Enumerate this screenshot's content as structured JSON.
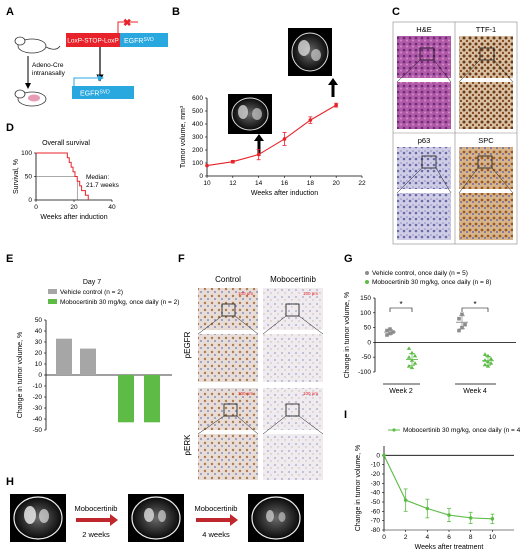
{
  "panels": {
    "A": {
      "letter": "A",
      "gene_box": "LoxP-STOP-LoxP",
      "egfr_label": "EGFR",
      "egfr_sup": "SVD",
      "cre_label_1": "Adeno-Cre",
      "cre_label_2": "intranasally",
      "egfr2_label": "EGFR",
      "egfr2_sup": "SVD",
      "colors": {
        "lsl": "#e8222a",
        "egfr": "#29a8e0"
      }
    },
    "B": {
      "letter": "B",
      "xlabel": "Weeks after induction",
      "ylabel": "Tumor volume, mm³",
      "color": "#e8222a"
    },
    "C": {
      "letter": "C",
      "labels": [
        "H&E",
        "TTF-1",
        "p63",
        "SPC"
      ]
    },
    "D": {
      "letter": "D",
      "title": "Overall survival",
      "median_1": "Median:",
      "median_2": "21.7 weeks",
      "xlabel": "Weeks after induction",
      "ylabel": "Survival, %",
      "color": "#e8222a"
    },
    "E": {
      "letter": "E",
      "day": "Day 7",
      "legend_vehicle": "Vehicle control (n = 2)",
      "legend_drug": "Mobocertinib 30 mg/kg, once daily (n = 2)",
      "ylabel": "Change in tumor volume, %",
      "colors": {
        "vehicle": "#a6a6a6",
        "drug": "#5dbb46"
      }
    },
    "F": {
      "letter": "F",
      "col_control": "Control",
      "col_drug": "Mobocertinib",
      "row_1": "pEGFR",
      "row_2": "pERK",
      "scale": "100 μm"
    },
    "G": {
      "letter": "G",
      "legend_vehicle": "Vehicle control, once daily (n = 5)",
      "legend_drug": "Mobocertinib 30 mg/kg, once daily (n = 8)",
      "ylabel": "Change in tumor volume, %",
      "week2": "Week 2",
      "week4": "Week 4",
      "star": "*",
      "colors": {
        "vehicle": "#8c8c8c",
        "drug": "#5dbb46"
      }
    },
    "H": {
      "letter": "H",
      "arrow_label": "Mobocertinib",
      "step1": "2 weeks",
      "step2": "4 weeks"
    },
    "I": {
      "letter": "I",
      "legend": "Mobocertinib 30 mg/kg, once daily (n = 4)",
      "xlabel": "Weeks after treatment",
      "ylabel": "Change in tumor volume, %",
      "color": "#5dbb46"
    }
  },
  "chart_data": [
    {
      "id": "B",
      "type": "line",
      "x": [
        10,
        12,
        14,
        16,
        18,
        20
      ],
      "y": [
        80,
        110,
        165,
        285,
        430,
        545
      ],
      "yerr": [
        0,
        10,
        40,
        50,
        25,
        15
      ],
      "xlim": [
        10,
        22
      ],
      "ylim": [
        0,
        600
      ],
      "xticks": [
        10,
        12,
        14,
        16,
        18,
        20,
        22
      ],
      "yticks": [
        0,
        100,
        200,
        300,
        400,
        500,
        600
      ],
      "xlabel": "Weeks after induction",
      "ylabel": "Tumor volume, mm³"
    },
    {
      "id": "D",
      "type": "line",
      "steps": [
        [
          0,
          100
        ],
        [
          16.5,
          100
        ],
        [
          16.5,
          90
        ],
        [
          17.5,
          90
        ],
        [
          17.5,
          80
        ],
        [
          18.5,
          80
        ],
        [
          18.5,
          70
        ],
        [
          19.5,
          70
        ],
        [
          19.5,
          60
        ],
        [
          20.5,
          60
        ],
        [
          20.5,
          50
        ],
        [
          21.7,
          50
        ],
        [
          21.7,
          40
        ],
        [
          23,
          40
        ],
        [
          23,
          30
        ],
        [
          24,
          30
        ],
        [
          24,
          20
        ],
        [
          26,
          20
        ],
        [
          26,
          10
        ],
        [
          27.5,
          10
        ],
        [
          27.5,
          0
        ]
      ],
      "median_x": 21.7,
      "xlim": [
        0,
        40
      ],
      "ylim": [
        0,
        100
      ],
      "xticks": [
        0,
        20,
        40
      ],
      "yticks": [
        0,
        50,
        100
      ],
      "title": "Overall survival",
      "xlabel": "Weeks after induction",
      "ylabel": "Survival, %"
    },
    {
      "id": "E",
      "type": "bar",
      "series": [
        {
          "name": "Vehicle control (n = 2)",
          "values": [
            33,
            24
          ]
        },
        {
          "name": "Mobocertinib 30 mg/kg, once daily (n = 2)",
          "values": [
            -43,
            -43
          ]
        }
      ],
      "ylim": [
        -50,
        50
      ],
      "yticks": [
        50,
        40,
        30,
        20,
        10,
        0,
        -10,
        -20,
        -30,
        -40,
        -50
      ],
      "title": "Day 7",
      "ylabel": "Change in tumor volume, %"
    },
    {
      "id": "G",
      "type": "scatter",
      "groups": [
        {
          "week": "Week 2",
          "series": "Vehicle control, once daily (n = 5)",
          "values": [
            25,
            30,
            35,
            40,
            45
          ],
          "mean": 35,
          "sd": 8
        },
        {
          "week": "Week 2",
          "series": "Mobocertinib 30 mg/kg, once daily (n = 8)",
          "values": [
            -20,
            -35,
            -45,
            -50,
            -60,
            -70,
            -80,
            -85
          ],
          "mean": -58,
          "sd": 20
        },
        {
          "week": "Week 4",
          "series": "Vehicle control, once daily (n = 5)",
          "values": [
            40,
            50,
            60,
            80,
            95
          ],
          "mean": 68,
          "sd": 22
        },
        {
          "week": "Week 4",
          "series": "Mobocertinib 30 mg/kg, once daily (n = 8)",
          "values": [
            -40,
            -45,
            -55,
            -60,
            -65,
            -70,
            -75,
            -80
          ],
          "mean": -62,
          "sd": 15
        }
      ],
      "ylim": [
        -100,
        150
      ],
      "yticks": [
        150,
        100,
        50,
        0,
        -50,
        -100
      ],
      "ylabel": "Change in tumor volume, %"
    },
    {
      "id": "I",
      "type": "line",
      "x": [
        0,
        2,
        4,
        6,
        8,
        10
      ],
      "y": [
        0,
        -48,
        -57,
        -64,
        -67,
        -68
      ],
      "yerr": [
        0,
        12,
        10,
        7,
        6,
        5
      ],
      "xlim": [
        0,
        12
      ],
      "ylim": [
        -80,
        10
      ],
      "xticks": [
        0,
        2,
        4,
        6,
        8,
        10
      ],
      "yticks": [
        0,
        -10,
        -20,
        -30,
        -40,
        -50,
        -60,
        -70,
        -80
      ],
      "xlabel": "Weeks after treatment",
      "ylabel": "Change in tumor volume, %"
    }
  ]
}
